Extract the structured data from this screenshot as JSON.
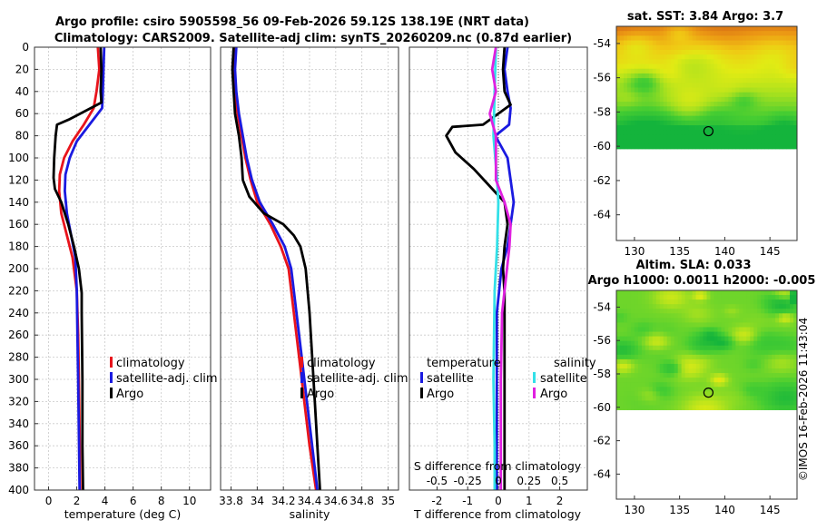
{
  "titles": {
    "main_line1": "Argo profile: csiro 5905598_56 09-Feb-2026 59.12S 138.19E (NRT data)",
    "main_line2": "Climatology: CARS2009. Satellite-adj clim: synTS_20260209.nc (0.87d earlier)",
    "sst_title": "sat. SST: 3.84 Argo: 3.7",
    "sla_title1": "Altim. SLA: 0.033",
    "sla_title2": "Argo h1000: 0.0011 h2000: -0.005",
    "credit": "©IMOS 16-Feb-2026 11:43:04"
  },
  "colors": {
    "climatology": "#e8141c",
    "satellite": "#1a1ae0",
    "argo": "#000000",
    "sal_satellite": "#33e0e8",
    "sal_argo": "#e020e0"
  },
  "chart_data": [
    {
      "type": "line",
      "id": "temperature",
      "xlabel": "temperature (deg C)",
      "ylabel": "",
      "xlim": [
        -1,
        11.5
      ],
      "ylim": [
        400,
        0
      ],
      "xticks": [
        0,
        2,
        4,
        6,
        8,
        10
      ],
      "xtick_labels": [
        "0",
        "2",
        "4",
        "6",
        "8",
        "10"
      ],
      "yticks": [
        0,
        20,
        40,
        60,
        80,
        100,
        120,
        140,
        160,
        180,
        200,
        220,
        240,
        260,
        280,
        300,
        320,
        340,
        360,
        380,
        400
      ],
      "ytick_labels": [
        "0",
        "20",
        "40",
        "60",
        "80",
        "100",
        "120",
        "140",
        "160",
        "180",
        "200",
        "220",
        "240",
        "260",
        "280",
        "300",
        "320",
        "340",
        "360",
        "380",
        "400"
      ],
      "legend": [
        "climatology",
        "satellite-adj. clim",
        "Argo"
      ],
      "series": [
        {
          "name": "climatology",
          "points": [
            [
              3.5,
              0
            ],
            [
              3.6,
              20
            ],
            [
              3.4,
              40
            ],
            [
              3.2,
              55
            ],
            [
              2.5,
              70
            ],
            [
              1.7,
              85
            ],
            [
              1.1,
              100
            ],
            [
              0.8,
              115
            ],
            [
              0.75,
              130
            ],
            [
              0.9,
              150
            ],
            [
              1.3,
              170
            ],
            [
              1.7,
              190
            ],
            [
              2.0,
              220
            ],
            [
              2.1,
              260
            ],
            [
              2.15,
              300
            ],
            [
              2.2,
              350
            ],
            [
              2.25,
              400
            ]
          ]
        },
        {
          "name": "satellite-adj. clim",
          "points": [
            [
              3.95,
              0
            ],
            [
              3.9,
              20
            ],
            [
              3.85,
              40
            ],
            [
              3.8,
              55
            ],
            [
              2.9,
              70
            ],
            [
              2.0,
              85
            ],
            [
              1.5,
              100
            ],
            [
              1.2,
              115
            ],
            [
              1.15,
              130
            ],
            [
              1.3,
              150
            ],
            [
              1.6,
              170
            ],
            [
              1.9,
              190
            ],
            [
              2.0,
              220
            ],
            [
              2.05,
              260
            ],
            [
              2.1,
              300
            ],
            [
              2.15,
              350
            ],
            [
              2.2,
              400
            ]
          ]
        },
        {
          "name": "Argo",
          "points": [
            [
              3.7,
              0
            ],
            [
              3.75,
              20
            ],
            [
              3.7,
              40
            ],
            [
              3.75,
              50
            ],
            [
              1.5,
              65
            ],
            [
              0.6,
              70
            ],
            [
              0.5,
              80
            ],
            [
              0.4,
              100
            ],
            [
              0.35,
              118
            ],
            [
              0.45,
              128
            ],
            [
              0.9,
              140
            ],
            [
              1.4,
              160
            ],
            [
              1.8,
              180
            ],
            [
              2.15,
              200
            ],
            [
              2.35,
              222
            ],
            [
              2.35,
              240
            ],
            [
              2.4,
              300
            ],
            [
              2.4,
              360
            ],
            [
              2.45,
              400
            ]
          ]
        }
      ]
    },
    {
      "type": "line",
      "id": "salinity",
      "xlabel": "salinity",
      "ylabel": "",
      "xlim": [
        33.72,
        35.08
      ],
      "ylim": [
        400,
        0
      ],
      "xticks": [
        33.8,
        34.0,
        34.2,
        34.4,
        34.6,
        34.8,
        35.0
      ],
      "xtick_labels": [
        "33.8",
        "34",
        "34.2",
        "34.4",
        "34.6",
        "34.8",
        "35"
      ],
      "legend": [
        "climatology",
        "satellite-adj. clim",
        "Argo"
      ],
      "series": [
        {
          "name": "climatology",
          "points": [
            [
              33.83,
              0
            ],
            [
              33.82,
              20
            ],
            [
              33.83,
              40
            ],
            [
              33.85,
              60
            ],
            [
              33.88,
              80
            ],
            [
              33.91,
              100
            ],
            [
              33.95,
              120
            ],
            [
              34.0,
              140
            ],
            [
              34.1,
              160
            ],
            [
              34.18,
              180
            ],
            [
              34.24,
              200
            ],
            [
              34.28,
              240
            ],
            [
              34.32,
              280
            ],
            [
              34.36,
              320
            ],
            [
              34.4,
              360
            ],
            [
              34.45,
              400
            ]
          ]
        },
        {
          "name": "satellite-adj. clim",
          "points": [
            [
              33.84,
              0
            ],
            [
              33.83,
              20
            ],
            [
              33.84,
              40
            ],
            [
              33.86,
              60
            ],
            [
              33.89,
              80
            ],
            [
              33.92,
              100
            ],
            [
              33.96,
              120
            ],
            [
              34.02,
              140
            ],
            [
              34.12,
              160
            ],
            [
              34.21,
              180
            ],
            [
              34.26,
              200
            ],
            [
              34.3,
              240
            ],
            [
              34.34,
              280
            ],
            [
              34.38,
              320
            ],
            [
              34.42,
              360
            ],
            [
              34.46,
              400
            ]
          ]
        },
        {
          "name": "Argo",
          "points": [
            [
              33.82,
              0
            ],
            [
              33.81,
              20
            ],
            [
              33.82,
              40
            ],
            [
              33.83,
              60
            ],
            [
              33.86,
              80
            ],
            [
              33.88,
              100
            ],
            [
              33.89,
              120
            ],
            [
              33.94,
              135
            ],
            [
              34.05,
              150
            ],
            [
              34.2,
              160
            ],
            [
              34.28,
              170
            ],
            [
              34.33,
              180
            ],
            [
              34.37,
              200
            ],
            [
              34.4,
              240
            ],
            [
              34.42,
              280
            ],
            [
              34.44,
              320
            ],
            [
              34.46,
              360
            ],
            [
              34.48,
              400
            ]
          ]
        }
      ]
    },
    {
      "type": "line",
      "id": "differences",
      "xlabel": "T difference from climatology",
      "xlabel_top": "S difference from climatology",
      "xlim": [
        -2.9,
        2.9
      ],
      "ylim": [
        400,
        0
      ],
      "xticks": [
        -2,
        -1,
        0,
        1,
        2
      ],
      "xtick_labels": [
        "-2",
        "-1",
        "0",
        "1",
        "2"
      ],
      "s_xticks": [
        -0.5,
        -0.25,
        0,
        0.25,
        0.5
      ],
      "s_xtick_labels": [
        "-0.5",
        "-0.25",
        "0",
        "0.25",
        "0.5"
      ],
      "legend_temperature_title": "temperature",
      "legend_salinity_title": "salinity",
      "legend_temperature": [
        "satellite",
        "Argo"
      ],
      "legend_salinity": [
        "satellite",
        "Argo"
      ],
      "series": [
        {
          "name": "T satellite",
          "group": "temperature",
          "points": [
            [
              0.3,
              0
            ],
            [
              0.2,
              20
            ],
            [
              0.3,
              40
            ],
            [
              0.4,
              55
            ],
            [
              0.35,
              70
            ],
            [
              -0.1,
              80
            ],
            [
              0.3,
              100
            ],
            [
              0.4,
              120
            ],
            [
              0.5,
              140
            ],
            [
              0.4,
              160
            ],
            [
              0.3,
              180
            ],
            [
              0.1,
              200
            ],
            [
              -0.05,
              240
            ],
            [
              -0.05,
              300
            ],
            [
              -0.05,
              400
            ]
          ]
        },
        {
          "name": "T Argo",
          "group": "temperature",
          "points": [
            [
              0.2,
              0
            ],
            [
              0.15,
              20
            ],
            [
              0.2,
              40
            ],
            [
              0.4,
              52
            ],
            [
              -0.5,
              70
            ],
            [
              -1.5,
              72
            ],
            [
              -1.7,
              80
            ],
            [
              -1.4,
              95
            ],
            [
              -0.8,
              110
            ],
            [
              -0.3,
              125
            ],
            [
              0.2,
              140
            ],
            [
              0.3,
              160
            ],
            [
              0.2,
              180
            ],
            [
              0.15,
              200
            ],
            [
              0.2,
              222
            ],
            [
              0.2,
              300
            ],
            [
              0.2,
              400
            ]
          ]
        },
        {
          "name": "S satellite",
          "group": "salinity",
          "points": [
            [
              -0.02,
              0
            ],
            [
              -0.03,
              40
            ],
            [
              -0.04,
              80
            ],
            [
              -0.01,
              120
            ],
            [
              0.0,
              140
            ],
            [
              -0.01,
              180
            ],
            [
              -0.03,
              220
            ],
            [
              -0.04,
              300
            ],
            [
              -0.03,
              360
            ],
            [
              -0.03,
              400
            ]
          ]
        },
        {
          "name": "S Argo",
          "group": "salinity",
          "points": [
            [
              -0.02,
              0
            ],
            [
              -0.05,
              20
            ],
            [
              -0.02,
              40
            ],
            [
              -0.07,
              60
            ],
            [
              -0.02,
              80
            ],
            [
              -0.02,
              100
            ],
            [
              -0.02,
              120
            ],
            [
              0.05,
              140
            ],
            [
              0.1,
              160
            ],
            [
              0.09,
              180
            ],
            [
              0.07,
              200
            ],
            [
              0.03,
              240
            ],
            [
              0.02,
              300
            ],
            [
              0.02,
              400
            ]
          ]
        }
      ]
    },
    {
      "type": "heatmap",
      "id": "sst_map",
      "title": "sat. SST: 3.84 Argo: 3.7",
      "xlim": [
        128,
        148
      ],
      "ylim": [
        -65.5,
        -53
      ],
      "data_lat_range": [
        -60.15,
        -53
      ],
      "xticks": [
        130,
        135,
        140,
        145
      ],
      "xtick_labels": [
        "130",
        "135",
        "140",
        "145"
      ],
      "yticks": [
        -54,
        -56,
        -58,
        -60,
        -62,
        -64
      ],
      "ytick_labels": [
        "-54",
        "-56",
        "-58",
        "-60",
        "-62",
        "-64"
      ],
      "marker": {
        "lon": 138.19,
        "lat": -59.12
      }
    },
    {
      "type": "heatmap",
      "id": "sla_map",
      "title": "Altim. SLA: 0.033",
      "xlim": [
        128,
        148
      ],
      "ylim": [
        -65.5,
        -53
      ],
      "data_lat_range": [
        -60.15,
        -53
      ],
      "xticks": [
        130,
        135,
        140,
        145
      ],
      "xtick_labels": [
        "130",
        "135",
        "140",
        "145"
      ],
      "yticks": [
        -54,
        -56,
        -58,
        -60,
        -62,
        -64
      ],
      "ytick_labels": [
        "-54",
        "-56",
        "-58",
        "-60",
        "-62",
        "-64"
      ],
      "marker": {
        "lon": 138.19,
        "lat": -59.12
      }
    }
  ]
}
